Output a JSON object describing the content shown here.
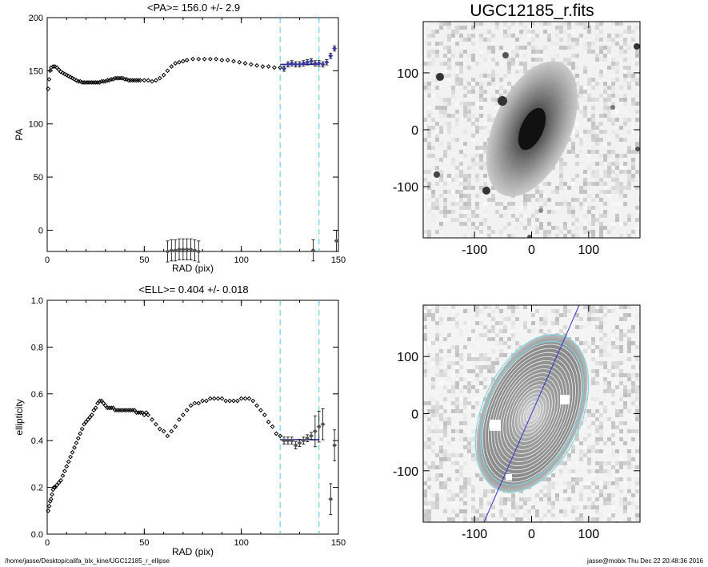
{
  "chart_data": [
    {
      "type": "scatter",
      "title": "<PA>= 156.0 +/-   2.9",
      "xlabel": "RAD (pix)",
      "ylabel": "PA",
      "xlim": [
        0,
        150
      ],
      "ylim": [
        -20,
        200
      ],
      "xticks": [
        "0",
        "50",
        "100",
        "150"
      ],
      "yticks": [
        "0",
        "50",
        "100",
        "150",
        "200"
      ],
      "vlines": [
        120,
        140
      ],
      "fit": {
        "value": 156.0,
        "from": 120,
        "to": 140
      },
      "series": [
        {
          "values": [
            [
              0.5,
              133
            ],
            [
              1,
              142
            ],
            [
              1.5,
              150
            ],
            [
              2,
              153
            ],
            [
              3,
              154
            ],
            [
              4,
              154
            ],
            [
              5,
              153
            ],
            [
              6,
              151
            ],
            [
              7,
              149
            ],
            [
              8,
              148
            ],
            [
              9,
              147
            ],
            [
              10,
              146
            ],
            [
              11,
              145
            ],
            [
              12,
              144
            ],
            [
              13,
              143
            ],
            [
              14,
              142
            ],
            [
              15,
              141
            ],
            [
              16,
              140
            ],
            [
              17,
              140
            ],
            [
              18,
              139
            ],
            [
              19,
              139
            ],
            [
              20,
              139
            ],
            [
              21,
              139
            ],
            [
              22,
              139
            ],
            [
              23,
              139
            ],
            [
              24,
              139
            ],
            [
              25,
              139
            ],
            [
              26,
              139
            ],
            [
              27,
              139
            ],
            [
              28,
              140
            ],
            [
              29,
              140
            ],
            [
              30,
              140
            ],
            [
              31,
              141
            ],
            [
              32,
              141
            ],
            [
              33,
              142
            ],
            [
              34,
              142
            ],
            [
              35,
              143
            ],
            [
              36,
              143
            ],
            [
              37,
              143
            ],
            [
              38,
              143
            ],
            [
              39,
              143
            ],
            [
              40,
              142
            ],
            [
              41,
              142
            ],
            [
              42,
              141
            ],
            [
              43,
              141
            ],
            [
              44,
              141
            ],
            [
              45,
              141
            ],
            [
              46,
              141
            ],
            [
              47,
              141
            ],
            [
              48,
              141
            ],
            [
              50,
              141
            ],
            [
              52,
              141
            ],
            [
              54,
              140
            ],
            [
              56,
              141
            ],
            [
              58,
              143
            ],
            [
              60,
              146
            ],
            [
              62,
              150
            ],
            [
              64,
              154
            ],
            [
              66,
              157
            ],
            [
              68,
              158
            ],
            [
              70,
              159
            ],
            [
              72,
              160
            ],
            [
              75,
              161
            ],
            [
              78,
              161
            ],
            [
              81,
              161
            ],
            [
              84,
              161
            ],
            [
              87,
              161
            ],
            [
              90,
              160
            ],
            [
              93,
              160
            ],
            [
              96,
              159
            ],
            [
              99,
              158
            ],
            [
              102,
              157
            ],
            [
              105,
              156
            ],
            [
              108,
              155
            ],
            [
              111,
              154
            ],
            [
              114,
              154
            ],
            [
              117,
              153
            ],
            [
              120,
              153
            ]
          ]
        },
        {
          "values": [
            [
              122,
              152
            ],
            [
              124,
              156
            ],
            [
              126,
              157
            ],
            [
              128,
              156
            ],
            [
              130,
              156
            ],
            [
              132,
              157
            ],
            [
              134,
              158
            ],
            [
              136,
              159
            ],
            [
              138,
              157
            ],
            [
              140,
              157
            ],
            [
              142,
              156
            ],
            [
              144,
              158
            ],
            [
              146,
              164
            ],
            [
              148,
              171
            ]
          ]
        },
        {
          "values": [
            [
              62,
              -20
            ],
            [
              64,
              -19
            ],
            [
              66,
              -19
            ],
            [
              68,
              -18
            ],
            [
              70,
              -18
            ],
            [
              72,
              -18
            ],
            [
              74,
              -18
            ],
            [
              76,
              -19
            ],
            [
              78,
              -20
            ],
            [
              137,
              -19
            ],
            [
              149,
              -10
            ]
          ]
        }
      ]
    },
    {
      "type": "scatter",
      "title": "<ELL>= 0.404 +/-  0.018",
      "xlabel": "RAD (pix)",
      "ylabel": "ellipticity",
      "xlim": [
        0,
        150
      ],
      "ylim": [
        0.0,
        1.0
      ],
      "xticks": [
        "0",
        "50",
        "100",
        "150"
      ],
      "yticks": [
        "0.0",
        "0.2",
        "0.4",
        "0.6",
        "0.8",
        "1.0"
      ],
      "vlines": [
        120,
        140
      ],
      "fit": {
        "value": 0.404,
        "from": 120,
        "to": 140
      },
      "series": [
        {
          "values": [
            [
              0.5,
              0.1
            ],
            [
              1,
              0.12
            ],
            [
              1.5,
              0.14
            ],
            [
              2,
              0.15
            ],
            [
              2.5,
              0.17
            ],
            [
              3,
              0.19
            ],
            [
              3.5,
              0.2
            ],
            [
              4,
              0.2
            ],
            [
              5,
              0.21
            ],
            [
              6,
              0.22
            ],
            [
              7,
              0.23
            ],
            [
              8,
              0.25
            ],
            [
              9,
              0.27
            ],
            [
              10,
              0.29
            ],
            [
              11,
              0.31
            ],
            [
              12,
              0.33
            ],
            [
              13,
              0.35
            ],
            [
              14,
              0.37
            ],
            [
              15,
              0.39
            ],
            [
              16,
              0.41
            ],
            [
              17,
              0.43
            ],
            [
              18,
              0.45
            ],
            [
              19,
              0.47
            ],
            [
              20,
              0.48
            ],
            [
              21,
              0.49
            ],
            [
              22,
              0.5
            ],
            [
              23,
              0.51
            ],
            [
              24,
              0.53
            ],
            [
              25,
              0.54
            ],
            [
              26,
              0.56
            ],
            [
              27,
              0.57
            ],
            [
              28,
              0.57
            ],
            [
              29,
              0.56
            ],
            [
              30,
              0.55
            ],
            [
              31,
              0.54
            ],
            [
              32,
              0.54
            ],
            [
              33,
              0.54
            ],
            [
              34,
              0.54
            ],
            [
              35,
              0.53
            ],
            [
              36,
              0.53
            ],
            [
              37,
              0.53
            ],
            [
              38,
              0.53
            ],
            [
              39,
              0.53
            ],
            [
              40,
              0.53
            ],
            [
              41,
              0.53
            ],
            [
              42,
              0.53
            ],
            [
              43,
              0.53
            ],
            [
              44,
              0.53
            ],
            [
              45,
              0.53
            ],
            [
              46,
              0.52
            ],
            [
              47,
              0.52
            ],
            [
              48,
              0.52
            ],
            [
              49,
              0.52
            ],
            [
              50,
              0.51
            ],
            [
              51,
              0.52
            ],
            [
              52,
              0.51
            ],
            [
              54,
              0.49
            ],
            [
              56,
              0.47
            ],
            [
              58,
              0.45
            ],
            [
              60,
              0.44
            ],
            [
              62,
              0.42
            ],
            [
              64,
              0.44
            ],
            [
              66,
              0.46
            ],
            [
              68,
              0.49
            ],
            [
              70,
              0.51
            ],
            [
              72,
              0.53
            ],
            [
              74,
              0.55
            ],
            [
              76,
              0.56
            ],
            [
              78,
              0.56
            ],
            [
              80,
              0.57
            ],
            [
              82,
              0.57
            ],
            [
              84,
              0.58
            ],
            [
              86,
              0.58
            ],
            [
              88,
              0.58
            ],
            [
              90,
              0.58
            ],
            [
              92,
              0.57
            ],
            [
              94,
              0.57
            ],
            [
              96,
              0.57
            ],
            [
              98,
              0.57
            ],
            [
              100,
              0.58
            ],
            [
              102,
              0.58
            ],
            [
              104,
              0.58
            ],
            [
              106,
              0.57
            ],
            [
              108,
              0.55
            ],
            [
              110,
              0.53
            ],
            [
              112,
              0.51
            ],
            [
              114,
              0.48
            ],
            [
              116,
              0.46
            ],
            [
              118,
              0.43
            ],
            [
              120,
              0.42
            ]
          ]
        },
        {
          "values": [
            [
              122,
              0.4
            ],
            [
              124,
              0.4
            ],
            [
              126,
              0.4
            ],
            [
              128,
              0.38
            ],
            [
              130,
              0.39
            ],
            [
              132,
              0.4
            ],
            [
              134,
              0.41
            ],
            [
              136,
              0.42
            ]
          ]
        },
        {
          "values": [
            [
              138,
              0.44
            ],
            [
              140,
              0.46
            ],
            [
              142,
              0.47
            ],
            [
              146,
              0.15
            ],
            [
              148,
              0.38
            ]
          ]
        }
      ]
    },
    {
      "type": "heatmap",
      "title": "UGC12185_r.fits",
      "xlim": [
        -190,
        190
      ],
      "ylim": [
        -190,
        190
      ],
      "xticks": [
        "-100",
        "0",
        "100"
      ],
      "yticks": [
        "-100",
        "0",
        "100"
      ]
    },
    {
      "type": "heatmap",
      "title": "",
      "xlim": [
        -190,
        190
      ],
      "ylim": [
        -190,
        190
      ],
      "xticks": [
        "-100",
        "0",
        "100"
      ],
      "yticks": [
        "-100",
        "0",
        "100"
      ],
      "pa_deg": 156.0,
      "ellipticity": 0.404
    }
  ],
  "footer": {
    "left": "/home/jasse/Desktop/califa_blx_kine/UGC12185_r_ellipse",
    "right": "jasse@mobix  Thu Dec 22 20:48:36 2016"
  }
}
